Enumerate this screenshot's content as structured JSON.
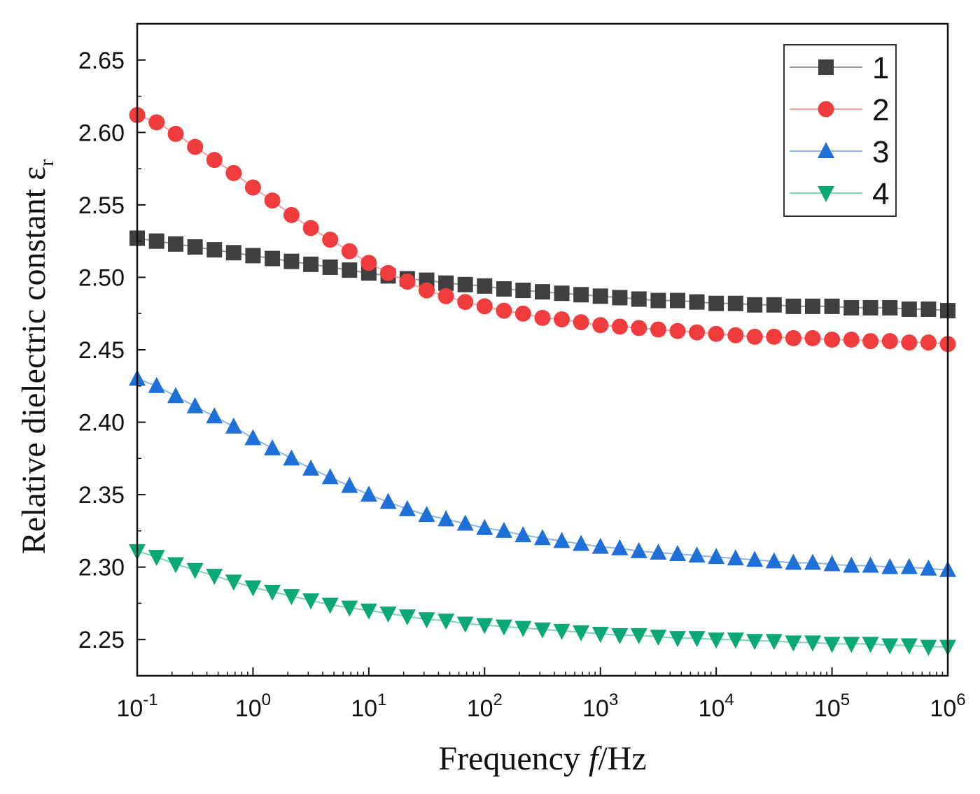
{
  "chart_data": {
    "type": "scatter",
    "xscale": "log",
    "xlim": [
      0.1,
      1000000
    ],
    "ylim": [
      2.225,
      2.675
    ],
    "xlabel_parts": [
      "Frequency ",
      "f",
      "/Hz"
    ],
    "ylabel_parts": [
      "Relative dielectric constant ε",
      "r"
    ],
    "xticks": [
      {
        "base": "10",
        "exp": "-1"
      },
      {
        "base": "10",
        "exp": "0"
      },
      {
        "base": "10",
        "exp": "1"
      },
      {
        "base": "10",
        "exp": "2"
      },
      {
        "base": "10",
        "exp": "3"
      },
      {
        "base": "10",
        "exp": "4"
      },
      {
        "base": "10",
        "exp": "5"
      },
      {
        "base": "10",
        "exp": "6"
      }
    ],
    "yticks": [
      "2.25",
      "2.30",
      "2.35",
      "2.40",
      "2.45",
      "2.50",
      "2.55",
      "2.60",
      "2.65"
    ],
    "legend_position": "top-right",
    "series": [
      {
        "name": "1",
        "color": "#3f3f3f",
        "line_color": "#9a9a9a",
        "marker": "square",
        "x": [
          0.1,
          0.147,
          0.215,
          0.316,
          0.464,
          0.681,
          1,
          1.47,
          2.15,
          3.16,
          4.64,
          6.81,
          10,
          14.7,
          21.5,
          31.6,
          46.4,
          68.1,
          100,
          147,
          215,
          316,
          464,
          681,
          1000,
          1470,
          2150,
          3160,
          4640,
          6810,
          10000,
          14700,
          21500,
          31600,
          46400,
          68100,
          100000,
          147000,
          215000,
          316000,
          464000,
          681000,
          1000000
        ],
        "y": [
          2.527,
          2.525,
          2.523,
          2.521,
          2.519,
          2.517,
          2.515,
          2.513,
          2.511,
          2.509,
          2.507,
          2.505,
          2.503,
          2.501,
          2.499,
          2.498,
          2.496,
          2.495,
          2.494,
          2.492,
          2.491,
          2.49,
          2.489,
          2.488,
          2.487,
          2.486,
          2.485,
          2.484,
          2.484,
          2.483,
          2.482,
          2.482,
          2.481,
          2.481,
          2.48,
          2.48,
          2.48,
          2.479,
          2.479,
          2.479,
          2.478,
          2.478,
          2.477
        ]
      },
      {
        "name": "2",
        "color": "#f03c3c",
        "line_color": "#f7a0a0",
        "marker": "circle",
        "x": [
          0.1,
          0.147,
          0.215,
          0.316,
          0.464,
          0.681,
          1,
          1.47,
          2.15,
          3.16,
          4.64,
          6.81,
          10,
          14.7,
          21.5,
          31.6,
          46.4,
          68.1,
          100,
          147,
          215,
          316,
          464,
          681,
          1000,
          1470,
          2150,
          3160,
          4640,
          6810,
          10000,
          14700,
          21500,
          31600,
          46400,
          68100,
          100000,
          147000,
          215000,
          316000,
          464000,
          681000,
          1000000
        ],
        "y": [
          2.612,
          2.607,
          2.599,
          2.59,
          2.581,
          2.572,
          2.562,
          2.553,
          2.543,
          2.534,
          2.526,
          2.518,
          2.51,
          2.503,
          2.497,
          2.491,
          2.487,
          2.483,
          2.48,
          2.477,
          2.475,
          2.472,
          2.471,
          2.469,
          2.467,
          2.466,
          2.465,
          2.464,
          2.463,
          2.462,
          2.461,
          2.46,
          2.459,
          2.459,
          2.458,
          2.458,
          2.457,
          2.457,
          2.456,
          2.456,
          2.455,
          2.455,
          2.454
        ]
      },
      {
        "name": "3",
        "color": "#1f6fd8",
        "line_color": "#8ab6ee",
        "marker": "triangle-up",
        "x": [
          0.1,
          0.147,
          0.215,
          0.316,
          0.464,
          0.681,
          1,
          1.47,
          2.15,
          3.16,
          4.64,
          6.81,
          10,
          14.7,
          21.5,
          31.6,
          46.4,
          68.1,
          100,
          147,
          215,
          316,
          464,
          681,
          1000,
          1470,
          2150,
          3160,
          4640,
          6810,
          10000,
          14700,
          21500,
          31600,
          46400,
          68100,
          100000,
          147000,
          215000,
          316000,
          464000,
          681000,
          1000000
        ],
        "y": [
          2.43,
          2.425,
          2.418,
          2.411,
          2.404,
          2.397,
          2.389,
          2.382,
          2.375,
          2.368,
          2.362,
          2.356,
          2.35,
          2.345,
          2.34,
          2.336,
          2.333,
          2.33,
          2.327,
          2.325,
          2.322,
          2.32,
          2.318,
          2.316,
          2.314,
          2.313,
          2.311,
          2.31,
          2.309,
          2.308,
          2.307,
          2.306,
          2.305,
          2.304,
          2.303,
          2.303,
          2.302,
          2.301,
          2.301,
          2.3,
          2.3,
          2.299,
          2.298
        ]
      },
      {
        "name": "4",
        "color": "#0aa876",
        "line_color": "#7ed3b5",
        "marker": "triangle-down",
        "x": [
          0.1,
          0.147,
          0.215,
          0.316,
          0.464,
          0.681,
          1,
          1.47,
          2.15,
          3.16,
          4.64,
          6.81,
          10,
          14.7,
          21.5,
          31.6,
          46.4,
          68.1,
          100,
          147,
          215,
          316,
          464,
          681,
          1000,
          1470,
          2150,
          3160,
          4640,
          6810,
          10000,
          14700,
          21500,
          31600,
          46400,
          68100,
          100000,
          147000,
          215000,
          316000,
          464000,
          681000,
          1000000
        ],
        "y": [
          2.311,
          2.307,
          2.302,
          2.298,
          2.294,
          2.29,
          2.286,
          2.283,
          2.28,
          2.277,
          2.274,
          2.272,
          2.27,
          2.268,
          2.266,
          2.264,
          2.263,
          2.261,
          2.26,
          2.259,
          2.258,
          2.257,
          2.256,
          2.255,
          2.254,
          2.253,
          2.253,
          2.252,
          2.251,
          2.251,
          2.25,
          2.25,
          2.249,
          2.249,
          2.248,
          2.248,
          2.247,
          2.247,
          2.247,
          2.246,
          2.246,
          2.245,
          2.245
        ]
      }
    ]
  }
}
